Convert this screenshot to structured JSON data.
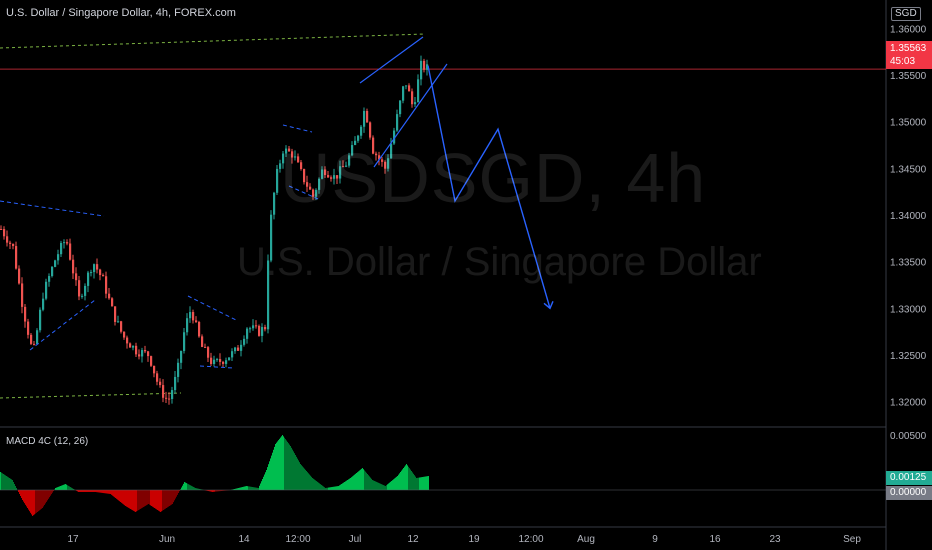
{
  "header": {
    "title": "U.S. Dollar / Singapore Dollar, 4h, FOREX.com"
  },
  "watermark": {
    "symbol": "USDSGD, 4h",
    "name": "U.S. Dollar / Singapore Dollar"
  },
  "currency_badge": "SGD",
  "price_axis": {
    "ticks": [
      "1.36000",
      "1.35500",
      "1.35000",
      "1.34500",
      "1.34000",
      "1.33500",
      "1.33000",
      "1.32500",
      "1.32000"
    ],
    "current_price": "1.35563",
    "countdown": "45:03"
  },
  "macd": {
    "label": "MACD 4C (12, 26)",
    "axis_top": "0.00500",
    "current_value": "0.00125",
    "zero_value": "0.00000"
  },
  "time_axis": {
    "labels": [
      "17",
      "Jun",
      "14",
      "12:00",
      "Jul",
      "12",
      "19",
      "12:00",
      "Aug",
      "9",
      "16",
      "23",
      "Sep"
    ]
  },
  "colors": {
    "up": "#26a69a",
    "down": "#ef5350",
    "projection": "#2962ff",
    "trend_dash": "#7cb342",
    "macd_up": "#00c853",
    "macd_down": "#d50000",
    "price_line": "#f23645"
  },
  "chart_data": {
    "type": "candlestick",
    "symbol": "USDSGD",
    "interval": "4h",
    "ylim": [
      1.3175,
      1.3625
    ],
    "last_price": 1.35563,
    "waypoints": [
      [
        0,
        1.3385
      ],
      [
        12,
        1.3365
      ],
      [
        22,
        1.33
      ],
      [
        32,
        1.325
      ],
      [
        42,
        1.3315
      ],
      [
        55,
        1.3355
      ],
      [
        65,
        1.3375
      ],
      [
        78,
        1.331
      ],
      [
        92,
        1.335
      ],
      [
        102,
        1.333
      ],
      [
        112,
        1.3295
      ],
      [
        122,
        1.327
      ],
      [
        135,
        1.3255
      ],
      [
        148,
        1.325
      ],
      [
        158,
        1.3215
      ],
      [
        167,
        1.32
      ],
      [
        176,
        1.323
      ],
      [
        184,
        1.328
      ],
      [
        190,
        1.33
      ],
      [
        200,
        1.326
      ],
      [
        212,
        1.324
      ],
      [
        222,
        1.3245
      ],
      [
        236,
        1.3255
      ],
      [
        246,
        1.328
      ],
      [
        258,
        1.3275
      ],
      [
        264,
        1.328
      ],
      [
        268,
        1.338
      ],
      [
        275,
        1.344
      ],
      [
        282,
        1.347
      ],
      [
        292,
        1.3465
      ],
      [
        302,
        1.344
      ],
      [
        312,
        1.342
      ],
      [
        322,
        1.345
      ],
      [
        334,
        1.344
      ],
      [
        345,
        1.3455
      ],
      [
        355,
        1.348
      ],
      [
        364,
        1.3515
      ],
      [
        372,
        1.347
      ],
      [
        384,
        1.345
      ],
      [
        394,
        1.3495
      ],
      [
        404,
        1.3545
      ],
      [
        412,
        1.3515
      ],
      [
        420,
        1.356
      ],
      [
        428,
        1.3556
      ]
    ],
    "projection": [
      [
        428,
        1.356
      ],
      [
        455,
        1.3415
      ],
      [
        498,
        1.3492
      ],
      [
        550,
        1.33
      ]
    ]
  }
}
